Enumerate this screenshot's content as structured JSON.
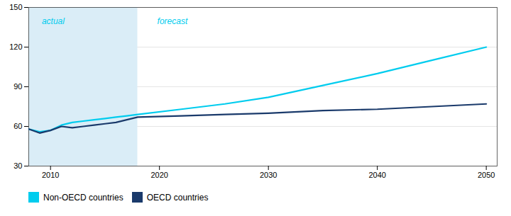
{
  "chart_data": {
    "type": "line",
    "x": [
      2008,
      2009,
      2010,
      2011,
      2012,
      2013,
      2014,
      2015,
      2016,
      2017,
      2018,
      2022,
      2026,
      2030,
      2035,
      2040,
      2045,
      2050
    ],
    "series": [
      {
        "name": "Non-OECD countries",
        "color": "#00ccee",
        "values": [
          58,
          56,
          57,
          61,
          63,
          64,
          65,
          66,
          67,
          68,
          69,
          73,
          77,
          82,
          91,
          100,
          110,
          120
        ]
      },
      {
        "name": "OECD countries",
        "color": "#1a3a6b",
        "values": [
          58,
          55,
          57,
          60,
          59,
          60,
          61,
          62,
          63,
          65,
          67,
          68,
          69,
          70,
          72,
          73,
          75,
          77
        ]
      }
    ],
    "xlim": [
      2008,
      2051
    ],
    "xticks": [
      2010,
      2020,
      2030,
      2040,
      2050
    ],
    "ylim": [
      30,
      150
    ],
    "yticks": [
      30,
      60,
      90,
      120,
      150
    ],
    "grid": true,
    "legend": "bottom",
    "spans": [
      {
        "x0": 2008,
        "x1": 2018,
        "color": "#daedf7"
      }
    ],
    "annotations": [
      {
        "text": "actual",
        "x": 2009.2,
        "y": 142
      },
      {
        "text": "forecast",
        "x": 2019.8,
        "y": 142
      }
    ]
  }
}
